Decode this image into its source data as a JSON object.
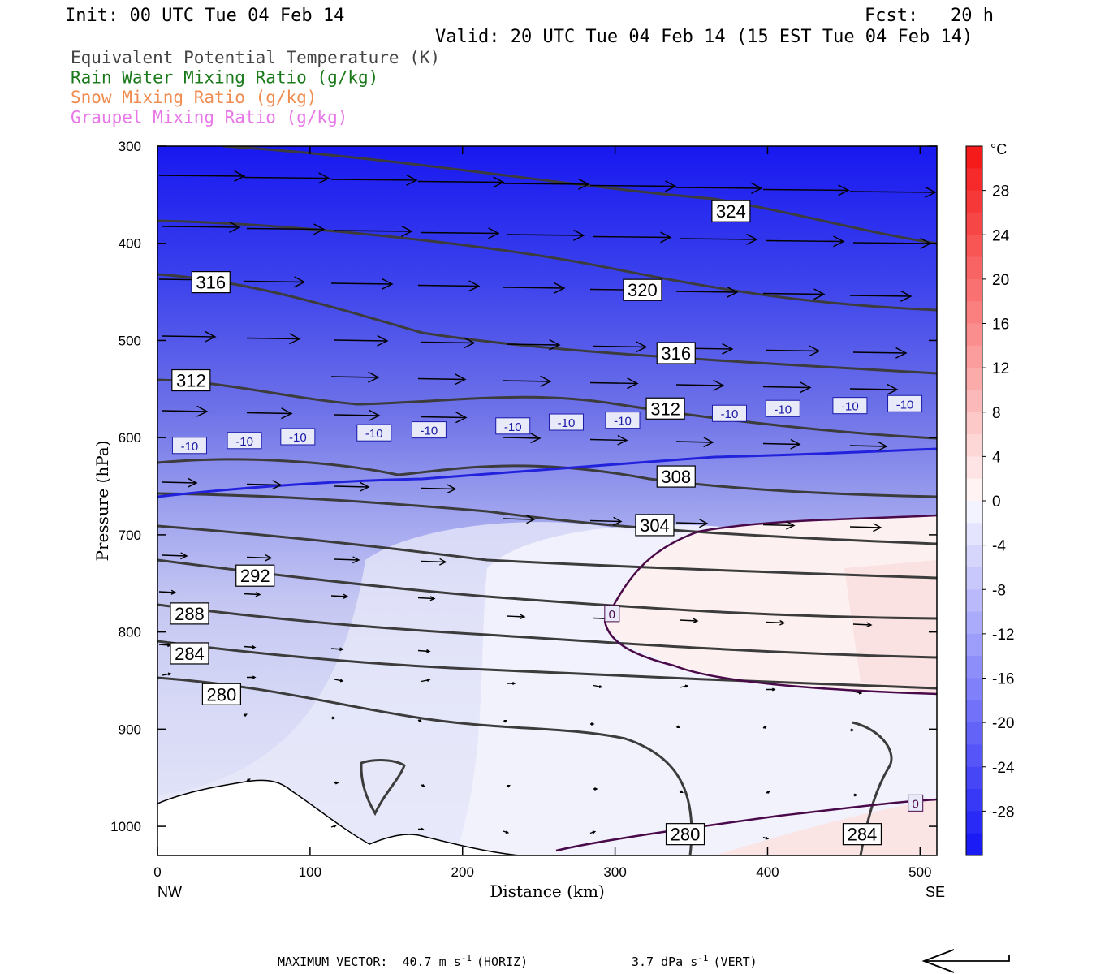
{
  "header": {
    "init": "Init: 00 UTC Tue 04 Feb 14",
    "fcst": "Fcst:   20 h",
    "valid": "Valid: 20 UTC Tue 04 Feb 14 (15 EST Tue 04 Feb 14)"
  },
  "legend": [
    {
      "label": "Equivalent Potential Temperature (K)",
      "color": "#444444"
    },
    {
      "label": "Rain Water Mixing Ratio (g/kg)",
      "color": "#1a7a1a"
    },
    {
      "label": "Snow Mixing Ratio (g/kg)",
      "color": "#f08c50"
    },
    {
      "label": "Graupel Mixing Ratio (g/kg)",
      "color": "#e878e8"
    }
  ],
  "chart_data": {
    "type": "cross-section",
    "xlabel": "Distance (km)",
    "ylabel": "Pressure (hPa)",
    "xlim": [
      0,
      511
    ],
    "ylim": [
      300,
      1030
    ],
    "x_ticks": [
      0,
      100,
      200,
      300,
      400,
      500
    ],
    "y_ticks": [
      300,
      400,
      500,
      600,
      700,
      800,
      900,
      1000
    ],
    "x_end_labels": {
      "left": "NW",
      "right": "SE"
    },
    "colorbar": {
      "unit": "°C",
      "ticks": [
        28,
        24,
        20,
        16,
        12,
        8,
        4,
        0,
        -4,
        -8,
        -12,
        -16,
        -20,
        -24,
        -28
      ]
    },
    "theta_e_labels": [
      {
        "value": "324",
        "x": 376,
        "p": 367
      },
      {
        "value": "320",
        "x": 318,
        "p": 448
      },
      {
        "value": "316",
        "x": 35,
        "p": 440
      },
      {
        "value": "316",
        "x": 340,
        "p": 513
      },
      {
        "value": "312",
        "x": 22,
        "p": 541
      },
      {
        "value": "312",
        "x": 333,
        "p": 570
      },
      {
        "value": "308",
        "x": 340,
        "p": 640
      },
      {
        "value": "304",
        "x": 326,
        "p": 690
      },
      {
        "value": "292",
        "x": 64,
        "p": 742
      },
      {
        "value": "288",
        "x": 21,
        "p": 781
      },
      {
        "value": "284",
        "x": 21,
        "p": 822
      },
      {
        "value": "280",
        "x": 42,
        "p": 864
      },
      {
        "value": "280",
        "x": 346,
        "p": 1008
      },
      {
        "value": "284",
        "x": 462,
        "p": 1008
      }
    ],
    "isotherm_labels": [
      {
        "value": "-10",
        "x": 21,
        "p": 608
      },
      {
        "value": "-10",
        "x": 57,
        "p": 603
      },
      {
        "value": "-10",
        "x": 92,
        "p": 599
      },
      {
        "value": "-10",
        "x": 142,
        "p": 595
      },
      {
        "value": "-10",
        "x": 178,
        "p": 592
      },
      {
        "value": "-10",
        "x": 233,
        "p": 588
      },
      {
        "value": "-10",
        "x": 268,
        "p": 584
      },
      {
        "value": "-10",
        "x": 305,
        "p": 582
      },
      {
        "value": "-10",
        "x": 375,
        "p": 575
      },
      {
        "value": "-10",
        "x": 410,
        "p": 570
      },
      {
        "value": "-10",
        "x": 454,
        "p": 567
      },
      {
        "value": "-10",
        "x": 490,
        "p": 565
      },
      {
        "value": "0",
        "x": 298,
        "p": 781
      },
      {
        "value": "0",
        "x": 497,
        "p": 976
      }
    ]
  },
  "footer": {
    "max_vector_label": "MAXIMUM VECTOR:",
    "horiz_value": "40.7 m s",
    "horiz_unit": "(HORIZ)",
    "vert_value": "3.7 dPa s",
    "vert_unit": "(VERT)",
    "exponent": "-1"
  }
}
